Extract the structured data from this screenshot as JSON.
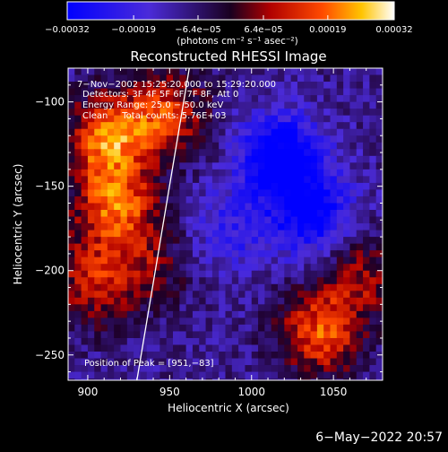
{
  "chart_data": {
    "type": "heatmap",
    "title": "Reconstructed RHESSI Image",
    "xlabel": "Heliocentric X (arcsec)",
    "ylabel": "Heliocentric Y (arcsec)",
    "xlim": [
      888,
      1080
    ],
    "ylim": [
      -265,
      -80
    ],
    "x_ticks": [
      900,
      950,
      1000,
      1050
    ],
    "y_ticks": [
      -100,
      -150,
      -200,
      -250
    ],
    "colorbar": {
      "range": [
        -0.00032,
        0.00032
      ],
      "ticks": [
        {
          "value": -0.00032,
          "label": "−0.00032"
        },
        {
          "value": -0.00019,
          "label": "−0.00019"
        },
        {
          "value": -6.4e-05,
          "label": "−6.4e−05"
        },
        {
          "value": 6.4e-05,
          "label": "6.4e−05"
        },
        {
          "value": 0.00019,
          "label": "0.00019"
        },
        {
          "value": 0.00032,
          "label": "0.00032"
        }
      ],
      "units_label": "(photons cm⁻² s⁻¹ asec⁻²)"
    },
    "annotations": [
      "7−Nov−2002 15:25:20.000 to 15:29:20.000",
      "Detectors: 3F 4F 5F 6F 7F 8F, Att 0",
      "Energy Range: 25.0 − 50.0 keV",
      "Clean     Total counts: 5.76E+03"
    ],
    "peak_label": "Position of Peak = [951,−83]",
    "peak": [
      951,
      -83
    ],
    "limb_line": [
      [
        930,
        -265
      ],
      [
        962,
        -80
      ]
    ],
    "regions": [
      {
        "name": "hot-northwest",
        "x": 910,
        "y": -120,
        "value": 0.00028
      },
      {
        "name": "hot-west",
        "x": 915,
        "y": -160,
        "value": 0.00026
      },
      {
        "name": "warm-northwest",
        "x": 945,
        "y": -105,
        "value": 0.00022
      },
      {
        "name": "warm-west-lower",
        "x": 900,
        "y": -205,
        "value": 0.00018
      },
      {
        "name": "warm-center",
        "x": 935,
        "y": -195,
        "value": 0.00012
      },
      {
        "name": "hot-southeast",
        "x": 1040,
        "y": -235,
        "value": 0.00025
      },
      {
        "name": "warm-east",
        "x": 1065,
        "y": -200,
        "value": 0.00016
      },
      {
        "name": "cold-northeast",
        "x": 1015,
        "y": -130,
        "value": -0.00028
      },
      {
        "name": "cold-east",
        "x": 1035,
        "y": -165,
        "value": -0.00024
      },
      {
        "name": "cold-center",
        "x": 985,
        "y": -175,
        "value": -0.00012
      }
    ]
  },
  "footer_date": "6−May−2022 20:57"
}
